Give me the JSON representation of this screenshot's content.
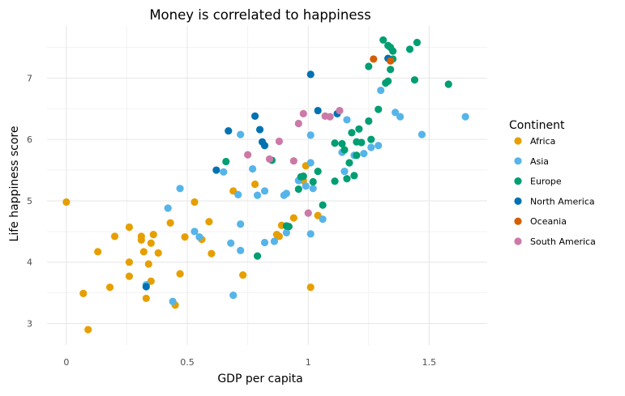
{
  "chart_data": {
    "type": "scatter",
    "title": "Money is correlated to happiness",
    "xlabel": "GDP per capita",
    "ylabel": "Life happiness score",
    "xlim": [
      -0.08,
      1.74
    ],
    "ylim": [
      2.65,
      7.85
    ],
    "xticks": [
      0,
      0.5,
      1,
      1.5
    ],
    "xtick_labels": [
      "0",
      "0.5",
      "1",
      "1.5"
    ],
    "yticks": [
      3,
      4,
      5,
      6,
      7
    ],
    "ytick_labels": [
      "3",
      "4",
      "5",
      "6",
      "7"
    ],
    "xminor": [
      0.25,
      0.75,
      1.25
    ],
    "yminor": [
      3.5,
      4.5,
      5.5,
      6.5,
      7.5
    ],
    "grid": true,
    "legend": {
      "title": "Continent",
      "position": "right"
    },
    "series": [
      {
        "name": "Africa",
        "color": "#E69F00",
        "points": [
          [
            0.0,
            4.98
          ],
          [
            0.07,
            3.49
          ],
          [
            0.09,
            2.9
          ],
          [
            0.13,
            4.17
          ],
          [
            0.18,
            3.59
          ],
          [
            0.2,
            4.42
          ],
          [
            0.26,
            4.57
          ],
          [
            0.26,
            4.0
          ],
          [
            0.26,
            3.77
          ],
          [
            0.31,
            4.36
          ],
          [
            0.31,
            4.42
          ],
          [
            0.32,
            4.17
          ],
          [
            0.33,
            3.41
          ],
          [
            0.34,
            3.97
          ],
          [
            0.35,
            4.31
          ],
          [
            0.35,
            3.69
          ],
          [
            0.36,
            4.45
          ],
          [
            0.38,
            4.15
          ],
          [
            0.43,
            4.64
          ],
          [
            0.45,
            3.3
          ],
          [
            0.47,
            3.81
          ],
          [
            0.49,
            4.41
          ],
          [
            0.53,
            4.98
          ],
          [
            0.56,
            4.37
          ],
          [
            0.59,
            4.66
          ],
          [
            0.6,
            4.14
          ],
          [
            0.69,
            5.16
          ],
          [
            0.73,
            3.79
          ],
          [
            0.78,
            5.27
          ],
          [
            0.87,
            4.45
          ],
          [
            0.88,
            4.42
          ],
          [
            0.89,
            4.6
          ],
          [
            0.94,
            4.72
          ],
          [
            0.98,
            5.33
          ],
          [
            0.99,
            5.57
          ],
          [
            1.01,
            3.59
          ],
          [
            1.04,
            4.76
          ]
        ]
      },
      {
        "name": "Asia",
        "color": "#56B4E9",
        "points": [
          [
            0.33,
            3.63
          ],
          [
            0.42,
            4.88
          ],
          [
            0.44,
            3.36
          ],
          [
            0.47,
            5.2
          ],
          [
            0.53,
            4.5
          ],
          [
            0.55,
            4.41
          ],
          [
            0.65,
            5.47
          ],
          [
            0.68,
            4.31
          ],
          [
            0.69,
            3.46
          ],
          [
            0.71,
            5.1
          ],
          [
            0.72,
            6.08
          ],
          [
            0.72,
            4.62
          ],
          [
            0.72,
            4.19
          ],
          [
            0.77,
            5.52
          ],
          [
            0.79,
            5.09
          ],
          [
            0.82,
            5.16
          ],
          [
            0.82,
            4.32
          ],
          [
            0.86,
            4.34
          ],
          [
            0.9,
            5.09
          ],
          [
            0.91,
            5.12
          ],
          [
            0.91,
            4.48
          ],
          [
            0.96,
            5.33
          ],
          [
            0.99,
            5.24
          ],
          [
            1.01,
            6.07
          ],
          [
            1.01,
            4.46
          ],
          [
            1.01,
            5.62
          ],
          [
            1.02,
            5.2
          ],
          [
            1.06,
            4.7
          ],
          [
            1.14,
            5.79
          ],
          [
            1.15,
            5.48
          ],
          [
            1.16,
            6.32
          ],
          [
            1.19,
            5.74
          ],
          [
            1.23,
            5.77
          ],
          [
            1.26,
            5.87
          ],
          [
            1.29,
            5.9
          ],
          [
            1.3,
            6.8
          ],
          [
            1.36,
            6.44
          ],
          [
            1.38,
            6.37
          ],
          [
            1.47,
            6.08
          ],
          [
            1.65,
            6.37
          ]
        ]
      },
      {
        "name": "Europe",
        "color": "#009E73",
        "points": [
          [
            0.66,
            5.64
          ],
          [
            0.79,
            4.1
          ],
          [
            0.85,
            5.66
          ],
          [
            0.91,
            4.59
          ],
          [
            0.92,
            4.58
          ],
          [
            0.96,
            5.19
          ],
          [
            0.97,
            5.39
          ],
          [
            0.98,
            5.4
          ],
          [
            1.02,
            5.31
          ],
          [
            1.04,
            5.48
          ],
          [
            1.06,
            4.93
          ],
          [
            1.11,
            5.94
          ],
          [
            1.11,
            5.32
          ],
          [
            1.14,
            5.93
          ],
          [
            1.15,
            5.83
          ],
          [
            1.16,
            5.36
          ],
          [
            1.17,
            5.62
          ],
          [
            1.18,
            6.11
          ],
          [
            1.19,
            5.41
          ],
          [
            1.2,
            5.96
          ],
          [
            1.2,
            5.74
          ],
          [
            1.21,
            6.17
          ],
          [
            1.22,
            5.95
          ],
          [
            1.25,
            7.19
          ],
          [
            1.25,
            6.3
          ],
          [
            1.26,
            6.0
          ],
          [
            1.29,
            6.49
          ],
          [
            1.31,
            7.62
          ],
          [
            1.32,
            6.92
          ],
          [
            1.33,
            7.53
          ],
          [
            1.33,
            6.95
          ],
          [
            1.34,
            7.5
          ],
          [
            1.34,
            7.14
          ],
          [
            1.35,
            7.44
          ],
          [
            1.35,
            7.31
          ],
          [
            1.42,
            7.47
          ],
          [
            1.44,
            6.97
          ],
          [
            1.45,
            7.58
          ],
          [
            1.58,
            6.9
          ]
        ]
      },
      {
        "name": "North America",
        "color": "#0072B2",
        "points": [
          [
            0.33,
            3.6
          ],
          [
            0.62,
            5.5
          ],
          [
            0.67,
            6.14
          ],
          [
            0.78,
            6.38
          ],
          [
            0.8,
            6.16
          ],
          [
            0.81,
            5.96
          ],
          [
            0.82,
            5.9
          ],
          [
            1.01,
            7.06
          ],
          [
            1.04,
            6.47
          ],
          [
            1.12,
            6.42
          ],
          [
            1.33,
            7.32
          ]
        ]
      },
      {
        "name": "Oceania",
        "color": "#D55E00",
        "points": [
          [
            1.27,
            7.31
          ],
          [
            1.34,
            7.28
          ]
        ]
      },
      {
        "name": "South America",
        "color": "#CC79A7",
        "points": [
          [
            0.75,
            5.75
          ],
          [
            0.84,
            5.68
          ],
          [
            0.88,
            5.97
          ],
          [
            0.94,
            5.65
          ],
          [
            0.96,
            6.26
          ],
          [
            0.98,
            6.42
          ],
          [
            1.0,
            4.8
          ],
          [
            1.07,
            6.38
          ],
          [
            1.09,
            6.37
          ],
          [
            1.13,
            6.47
          ]
        ]
      }
    ]
  }
}
